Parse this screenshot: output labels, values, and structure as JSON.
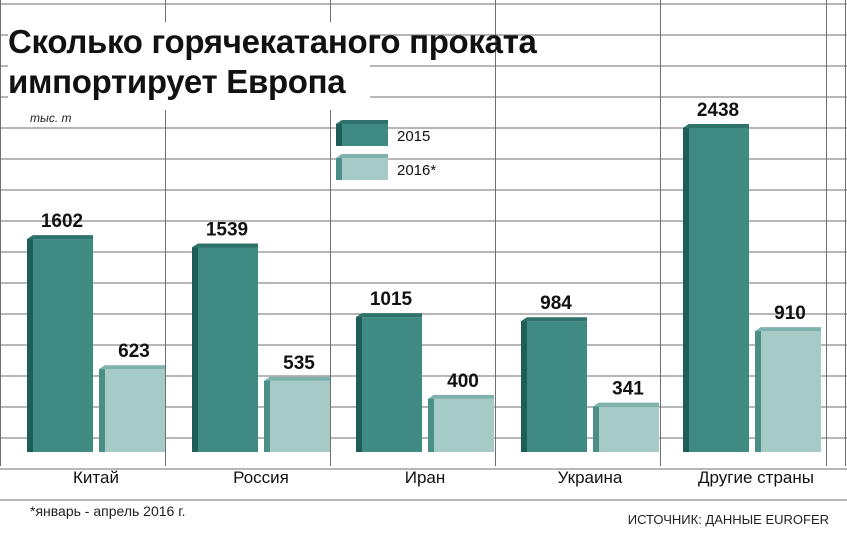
{
  "title_lines": [
    "Сколько горячекатаного проката",
    "импортирует Европа"
  ],
  "unit_label": "тыс. т",
  "footnote": "*январь - апрель 2016 г.",
  "source": "ИСТОЧНИК: ДАННЫЕ EUROFER",
  "colors": {
    "s2015_front": "#3f8a83",
    "s2015_side": "#1f5d58",
    "s2015_top": "#2f716b",
    "s2016_front": "#a6cbc7",
    "s2016_side": "#4b8d87",
    "s2016_top": "#7fb2ad",
    "grid": "#6f6f6f"
  },
  "chart_data": {
    "type": "bar",
    "categories": [
      "Китай",
      "Россия",
      "Иран",
      "Украина",
      "Другие страны"
    ],
    "series": [
      {
        "name": "2015",
        "values": [
          1602,
          1539,
          1015,
          984,
          2438
        ]
      },
      {
        "name": "2016*",
        "values": [
          623,
          535,
          400,
          341,
          910
        ]
      }
    ],
    "ylabel": "тыс. т",
    "ylim": [
      0,
      2600
    ],
    "grid": true,
    "legend": "top-center"
  }
}
